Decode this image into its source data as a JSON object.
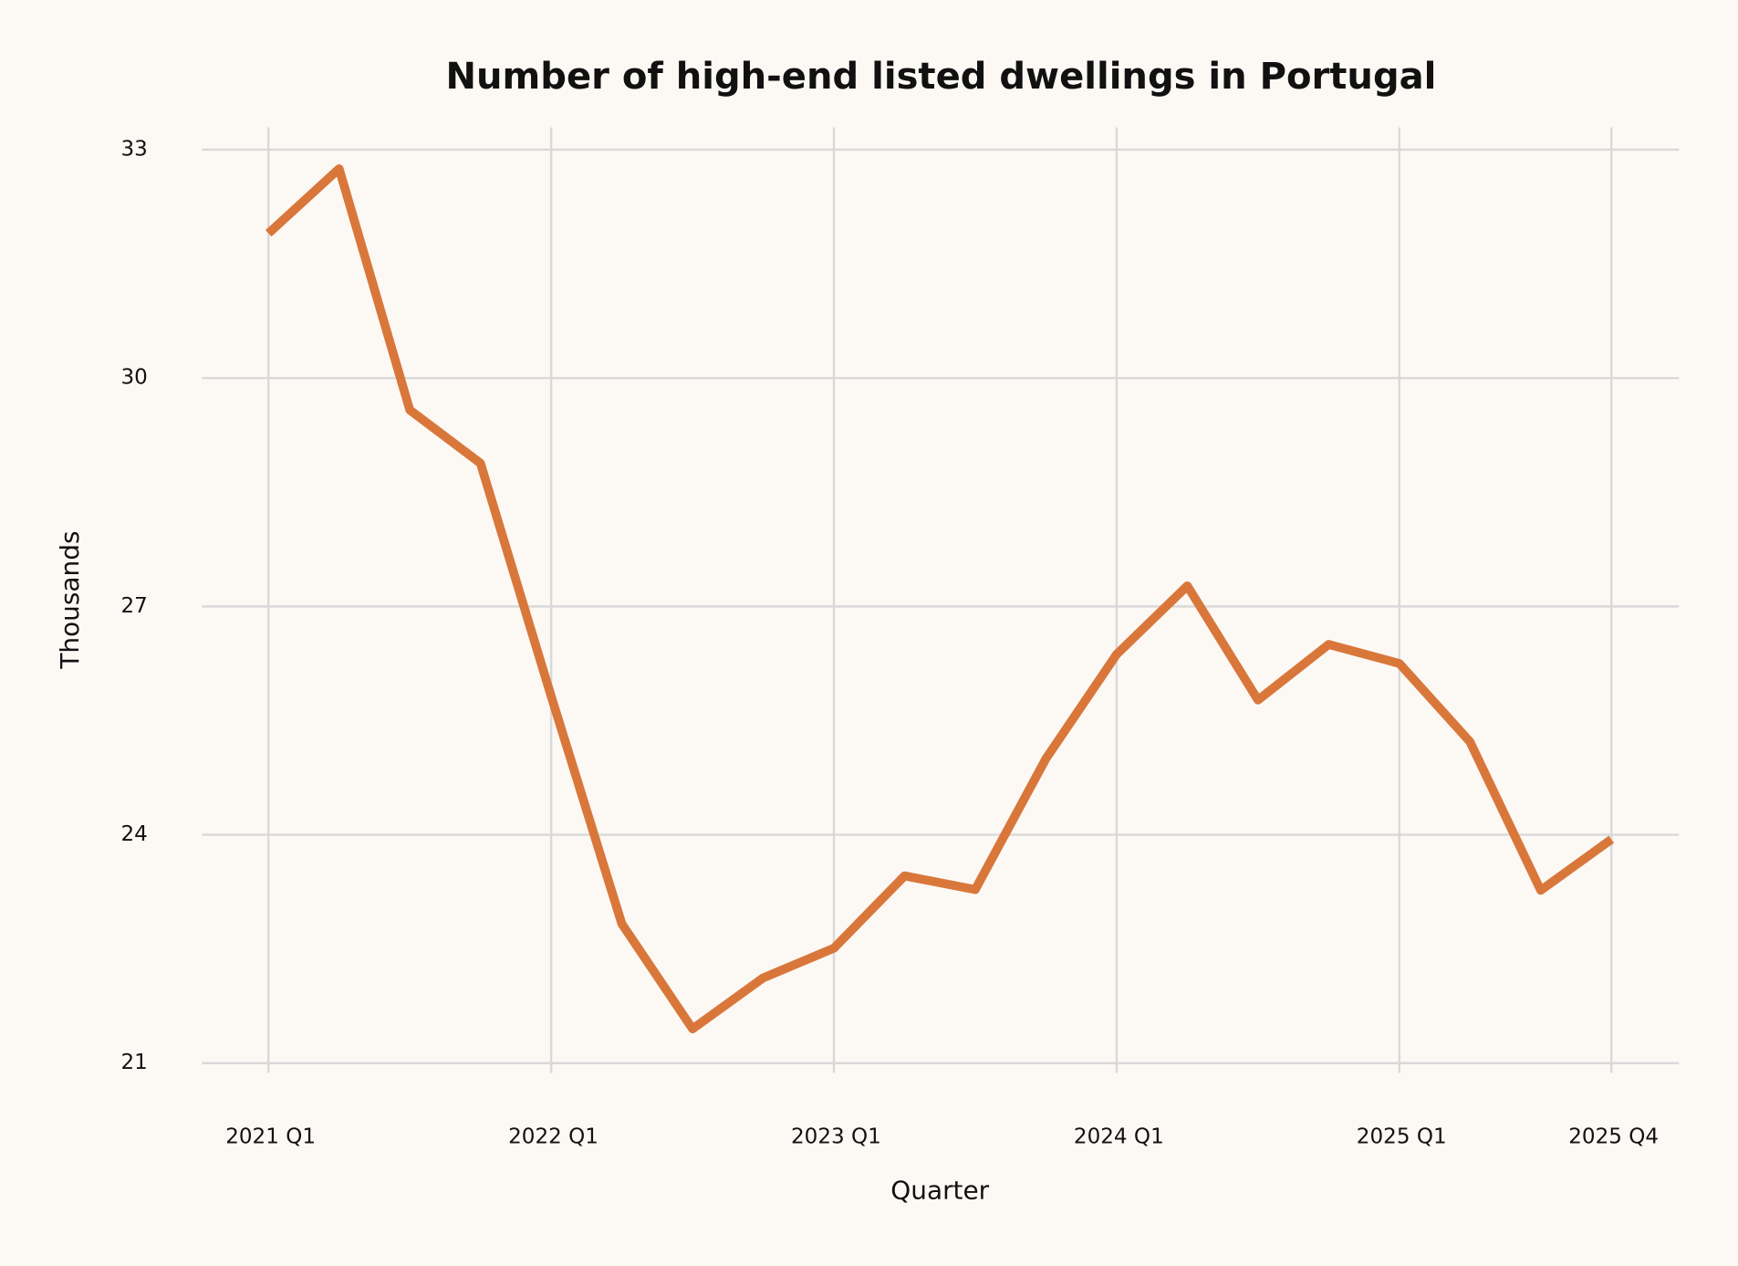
{
  "chart_data": {
    "type": "line",
    "title": "Number of high-end listed dwellings in Portugal",
    "x_label": "Quarter",
    "y_label": "Thousands",
    "categories": [
      "2021 Q1",
      null,
      null,
      null,
      "2022 Q1",
      null,
      null,
      null,
      "2023 Q1",
      null,
      null,
      null,
      "2024 Q1",
      null,
      null,
      null,
      "2025 Q1",
      null,
      null,
      "2025 Q4"
    ],
    "values": [
      31.9,
      32.75,
      29.58,
      28.88,
      25.82,
      22.83,
      21.45,
      22.12,
      22.51,
      23.46,
      23.28,
      25.0,
      26.37,
      27.27,
      25.77,
      26.5,
      26.25,
      25.22,
      23.27,
      23.94
    ],
    "color": "#d9773b",
    "ylim": [
      21,
      33
    ],
    "yticks": [
      21,
      24,
      27,
      30,
      33
    ],
    "grid": true
  }
}
